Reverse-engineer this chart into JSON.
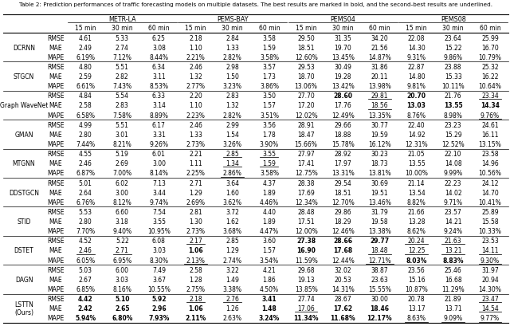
{
  "title": "Table 2: Prediction performances of traffic forecasting models on multiple datasets. The best results are marked in bold, and the second-best results are underlined.",
  "datasets": [
    "METR-LA",
    "PEMS-BAY",
    "PEMS04",
    "PEMS08"
  ],
  "horizons": [
    "15 min",
    "30 min",
    "60 min",
    "15 min",
    "30 min",
    "60 min",
    "15 min",
    "30 min",
    "60 min",
    "15 min",
    "30 min",
    "60 min"
  ],
  "metrics": [
    "RMSE",
    "MAE",
    "MAPE"
  ],
  "models": [
    "DCRNN",
    "STGCN",
    "Graph WaveNet",
    "GMAN",
    "MTGNN",
    "DDSTGCN",
    "STID",
    "DSTET",
    "DAGN",
    "LSTTN\n(Ours)"
  ],
  "data": {
    "DCRNN": {
      "RMSE": [
        "4.61",
        "5.33",
        "6.25",
        "2.18",
        "2.84",
        "3.58",
        "29.50",
        "31.35",
        "34.20",
        "22.08",
        "23.64",
        "25.99"
      ],
      "MAE": [
        "2.49",
        "2.74",
        "3.08",
        "1.10",
        "1.33",
        "1.59",
        "18.51",
        "19.70",
        "21.56",
        "14.30",
        "15.22",
        "16.70"
      ],
      "MAPE": [
        "6.19%",
        "7.12%",
        "8.44%",
        "2.21%",
        "2.82%",
        "3.58%",
        "12.60%",
        "13.45%",
        "14.87%",
        "9.31%",
        "9.86%",
        "10.79%"
      ]
    },
    "STGCN": {
      "RMSE": [
        "4.80",
        "5.51",
        "6.34",
        "2.46",
        "2.98",
        "3.57",
        "29.53",
        "30.49",
        "31.86",
        "22.87",
        "23.88",
        "25.32"
      ],
      "MAE": [
        "2.59",
        "2.82",
        "3.11",
        "1.32",
        "1.50",
        "1.73",
        "18.70",
        "19.28",
        "20.11",
        "14.80",
        "15.33",
        "16.22"
      ],
      "MAPE": [
        "6.61%",
        "7.43%",
        "8.53%",
        "2.77%",
        "3.23%",
        "3.86%",
        "13.06%",
        "13.42%",
        "13.98%",
        "9.81%",
        "10.11%",
        "10.64%"
      ]
    },
    "Graph WaveNet": {
      "RMSE": [
        "4.84",
        "5.54",
        "6.33",
        "2.20",
        "2.83",
        "3.50",
        "27.70",
        "28.60",
        "29.81",
        "20.70",
        "21.76",
        "23.34"
      ],
      "MAE": [
        "2.58",
        "2.83",
        "3.14",
        "1.10",
        "1.32",
        "1.57",
        "17.20",
        "17.76",
        "18.56",
        "13.03",
        "13.55",
        "14.34"
      ],
      "MAPE": [
        "6.58%",
        "7.58%",
        "8.89%",
        "2.23%",
        "2.82%",
        "3.51%",
        "12.02%",
        "12.49%",
        "13.35%",
        "8.76%",
        "8.98%",
        "9.76%"
      ]
    },
    "GMAN": {
      "RMSE": [
        "4.99",
        "5.51",
        "6.17",
        "2.46",
        "2.99",
        "3.56",
        "28.91",
        "29.66",
        "30.77",
        "22.40",
        "23.23",
        "24.61"
      ],
      "MAE": [
        "2.80",
        "3.01",
        "3.31",
        "1.33",
        "1.54",
        "1.78",
        "18.47",
        "18.88",
        "19.59",
        "14.92",
        "15.29",
        "16.11"
      ],
      "MAPE": [
        "7.44%",
        "8.21%",
        "9.26%",
        "2.73%",
        "3.26%",
        "3.90%",
        "15.66%",
        "15.78%",
        "16.12%",
        "12.31%",
        "12.52%",
        "13.15%"
      ]
    },
    "MTGNN": {
      "RMSE": [
        "4.55",
        "5.19",
        "6.01",
        "2.21",
        "2.85",
        "3.55",
        "27.97",
        "28.92",
        "30.23",
        "21.05",
        "22.10",
        "23.58"
      ],
      "MAE": [
        "2.46",
        "2.69",
        "3.00",
        "1.11",
        "1.34",
        "1.59",
        "17.41",
        "17.97",
        "18.73",
        "13.55",
        "14.08",
        "14.96"
      ],
      "MAPE": [
        "6.87%",
        "7.00%",
        "8.14%",
        "2.25%",
        "2.86%",
        "3.58%",
        "12.75%",
        "13.31%",
        "13.81%",
        "10.00%",
        "9.99%",
        "10.56%"
      ]
    },
    "DDSTGCN": {
      "RMSE": [
        "5.01",
        "6.02",
        "7.13",
        "2.71",
        "3.64",
        "4.37",
        "28.38",
        "29.54",
        "30.69",
        "21.14",
        "22.23",
        "24.12"
      ],
      "MAE": [
        "2.64",
        "3.00",
        "3.44",
        "1.29",
        "1.60",
        "1.89",
        "17.69",
        "18.51",
        "19.51",
        "13.54",
        "14.02",
        "14.70"
      ],
      "MAPE": [
        "6.76%",
        "8.12%",
        "9.74%",
        "2.69%",
        "3.62%",
        "4.46%",
        "12.34%",
        "12.70%",
        "13.46%",
        "8.82%",
        "9.71%",
        "10.41%"
      ]
    },
    "STID": {
      "RMSE": [
        "5.53",
        "6.60",
        "7.54",
        "2.81",
        "3.72",
        "4.40",
        "28.48",
        "29.86",
        "31.79",
        "21.66",
        "23.57",
        "25.89"
      ],
      "MAE": [
        "2.80",
        "3.18",
        "3.55",
        "1.30",
        "1.62",
        "1.89",
        "17.51",
        "18.29",
        "19.58",
        "13.28",
        "14.21",
        "15.58"
      ],
      "MAPE": [
        "7.70%",
        "9.40%",
        "10.95%",
        "2.73%",
        "3.68%",
        "4.47%",
        "12.00%",
        "12.46%",
        "13.38%",
        "8.62%",
        "9.24%",
        "10.33%"
      ]
    },
    "DSTET": {
      "RMSE": [
        "4.52",
        "5.22",
        "6.08",
        "2.17",
        "2.85",
        "3.60",
        "27.38",
        "28.66",
        "29.77",
        "20.24",
        "21.63",
        "23.53"
      ],
      "MAE": [
        "2.46",
        "2.71",
        "3.03",
        "1.06",
        "1.29",
        "1.57",
        "16.90",
        "17.68",
        "18.48",
        "12.25",
        "13.21",
        "14.11"
      ],
      "MAPE": [
        "6.05%",
        "6.95%",
        "8.30%",
        "2.13%",
        "2.74%",
        "3.54%",
        "11.59%",
        "12.44%",
        "12.71%",
        "8.03%",
        "8.83%",
        "9.30%"
      ]
    },
    "DAGN": {
      "RMSE": [
        "5.03",
        "6.00",
        "7.49",
        "2.58",
        "3.22",
        "4.21",
        "29.68",
        "32.02",
        "38.87",
        "23.56",
        "25.46",
        "31.97"
      ],
      "MAE": [
        "2.67",
        "3.03",
        "3.67",
        "1.28",
        "1.49",
        "1.86",
        "19.13",
        "20.53",
        "23.63",
        "15.16",
        "16.68",
        "20.94"
      ],
      "MAPE": [
        "6.85%",
        "8.16%",
        "10.55%",
        "2.75%",
        "3.38%",
        "4.50%",
        "13.85%",
        "14.31%",
        "15.55%",
        "10.87%",
        "11.29%",
        "14.30%"
      ]
    },
    "LSTTN\n(Ours)": {
      "RMSE": [
        "4.42",
        "5.10",
        "5.92",
        "2.18",
        "2.76",
        "3.41",
        "27.74",
        "28.67",
        "30.00",
        "20.78",
        "21.89",
        "23.47"
      ],
      "MAE": [
        "2.42",
        "2.65",
        "2.96",
        "1.06",
        "1.26",
        "1.48",
        "17.06",
        "17.62",
        "18.46",
        "13.17",
        "13.71",
        "14.54"
      ],
      "MAPE": [
        "5.94%",
        "6.80%",
        "7.93%",
        "2.11%",
        "2.63%",
        "3.24%",
        "11.34%",
        "11.68%",
        "12.17%",
        "8.63%",
        "9.09%",
        "9.77%"
      ]
    }
  },
  "bold": {
    "DCRNN": {
      "RMSE": [],
      "MAE": [],
      "MAPE": []
    },
    "STGCN": {
      "RMSE": [],
      "MAE": [],
      "MAPE": []
    },
    "Graph WaveNet": {
      "RMSE": [
        7,
        9
      ],
      "MAE": [
        9,
        10,
        11
      ],
      "MAPE": []
    },
    "GMAN": {
      "RMSE": [],
      "MAE": [],
      "MAPE": []
    },
    "MTGNN": {
      "RMSE": [],
      "MAE": [],
      "MAPE": []
    },
    "DDSTGCN": {
      "RMSE": [],
      "MAE": [],
      "MAPE": []
    },
    "STID": {
      "RMSE": [],
      "MAE": [],
      "MAPE": []
    },
    "DSTET": {
      "RMSE": [
        6,
        7,
        8
      ],
      "MAE": [
        3,
        6,
        7
      ],
      "MAPE": [
        9,
        10
      ]
    },
    "DAGN": {
      "RMSE": [],
      "MAE": [],
      "MAPE": []
    },
    "LSTTN\n(Ours)": {
      "RMSE": [
        0,
        1,
        2,
        5
      ],
      "MAE": [
        0,
        1,
        2,
        3,
        5,
        7,
        8
      ],
      "MAPE": [
        0,
        1,
        2,
        3,
        5,
        6,
        7,
        8
      ]
    }
  },
  "underline": {
    "DCRNN": {
      "RMSE": [],
      "MAE": [],
      "MAPE": []
    },
    "STGCN": {
      "RMSE": [],
      "MAE": [],
      "MAPE": []
    },
    "Graph WaveNet": {
      "RMSE": [
        8,
        11
      ],
      "MAE": [
        8
      ],
      "MAPE": [
        11
      ]
    },
    "GMAN": {
      "RMSE": [],
      "MAE": [],
      "MAPE": []
    },
    "MTGNN": {
      "RMSE": [
        4,
        5
      ],
      "MAE": [
        4,
        5
      ],
      "MAPE": [
        4
      ]
    },
    "DDSTGCN": {
      "RMSE": [],
      "MAE": [],
      "MAPE": []
    },
    "STID": {
      "RMSE": [],
      "MAE": [],
      "MAPE": []
    },
    "DSTET": {
      "RMSE": [
        3,
        9,
        10
      ],
      "MAE": [
        0,
        1,
        8,
        9,
        10,
        11
      ],
      "MAPE": [
        3,
        8,
        11
      ]
    },
    "DAGN": {
      "RMSE": [],
      "MAE": [],
      "MAPE": []
    },
    "LSTTN\n(Ours)": {
      "RMSE": [
        3,
        4,
        11
      ],
      "MAE": [
        6,
        11
      ],
      "MAPE": [
        9,
        10,
        11
      ]
    }
  }
}
